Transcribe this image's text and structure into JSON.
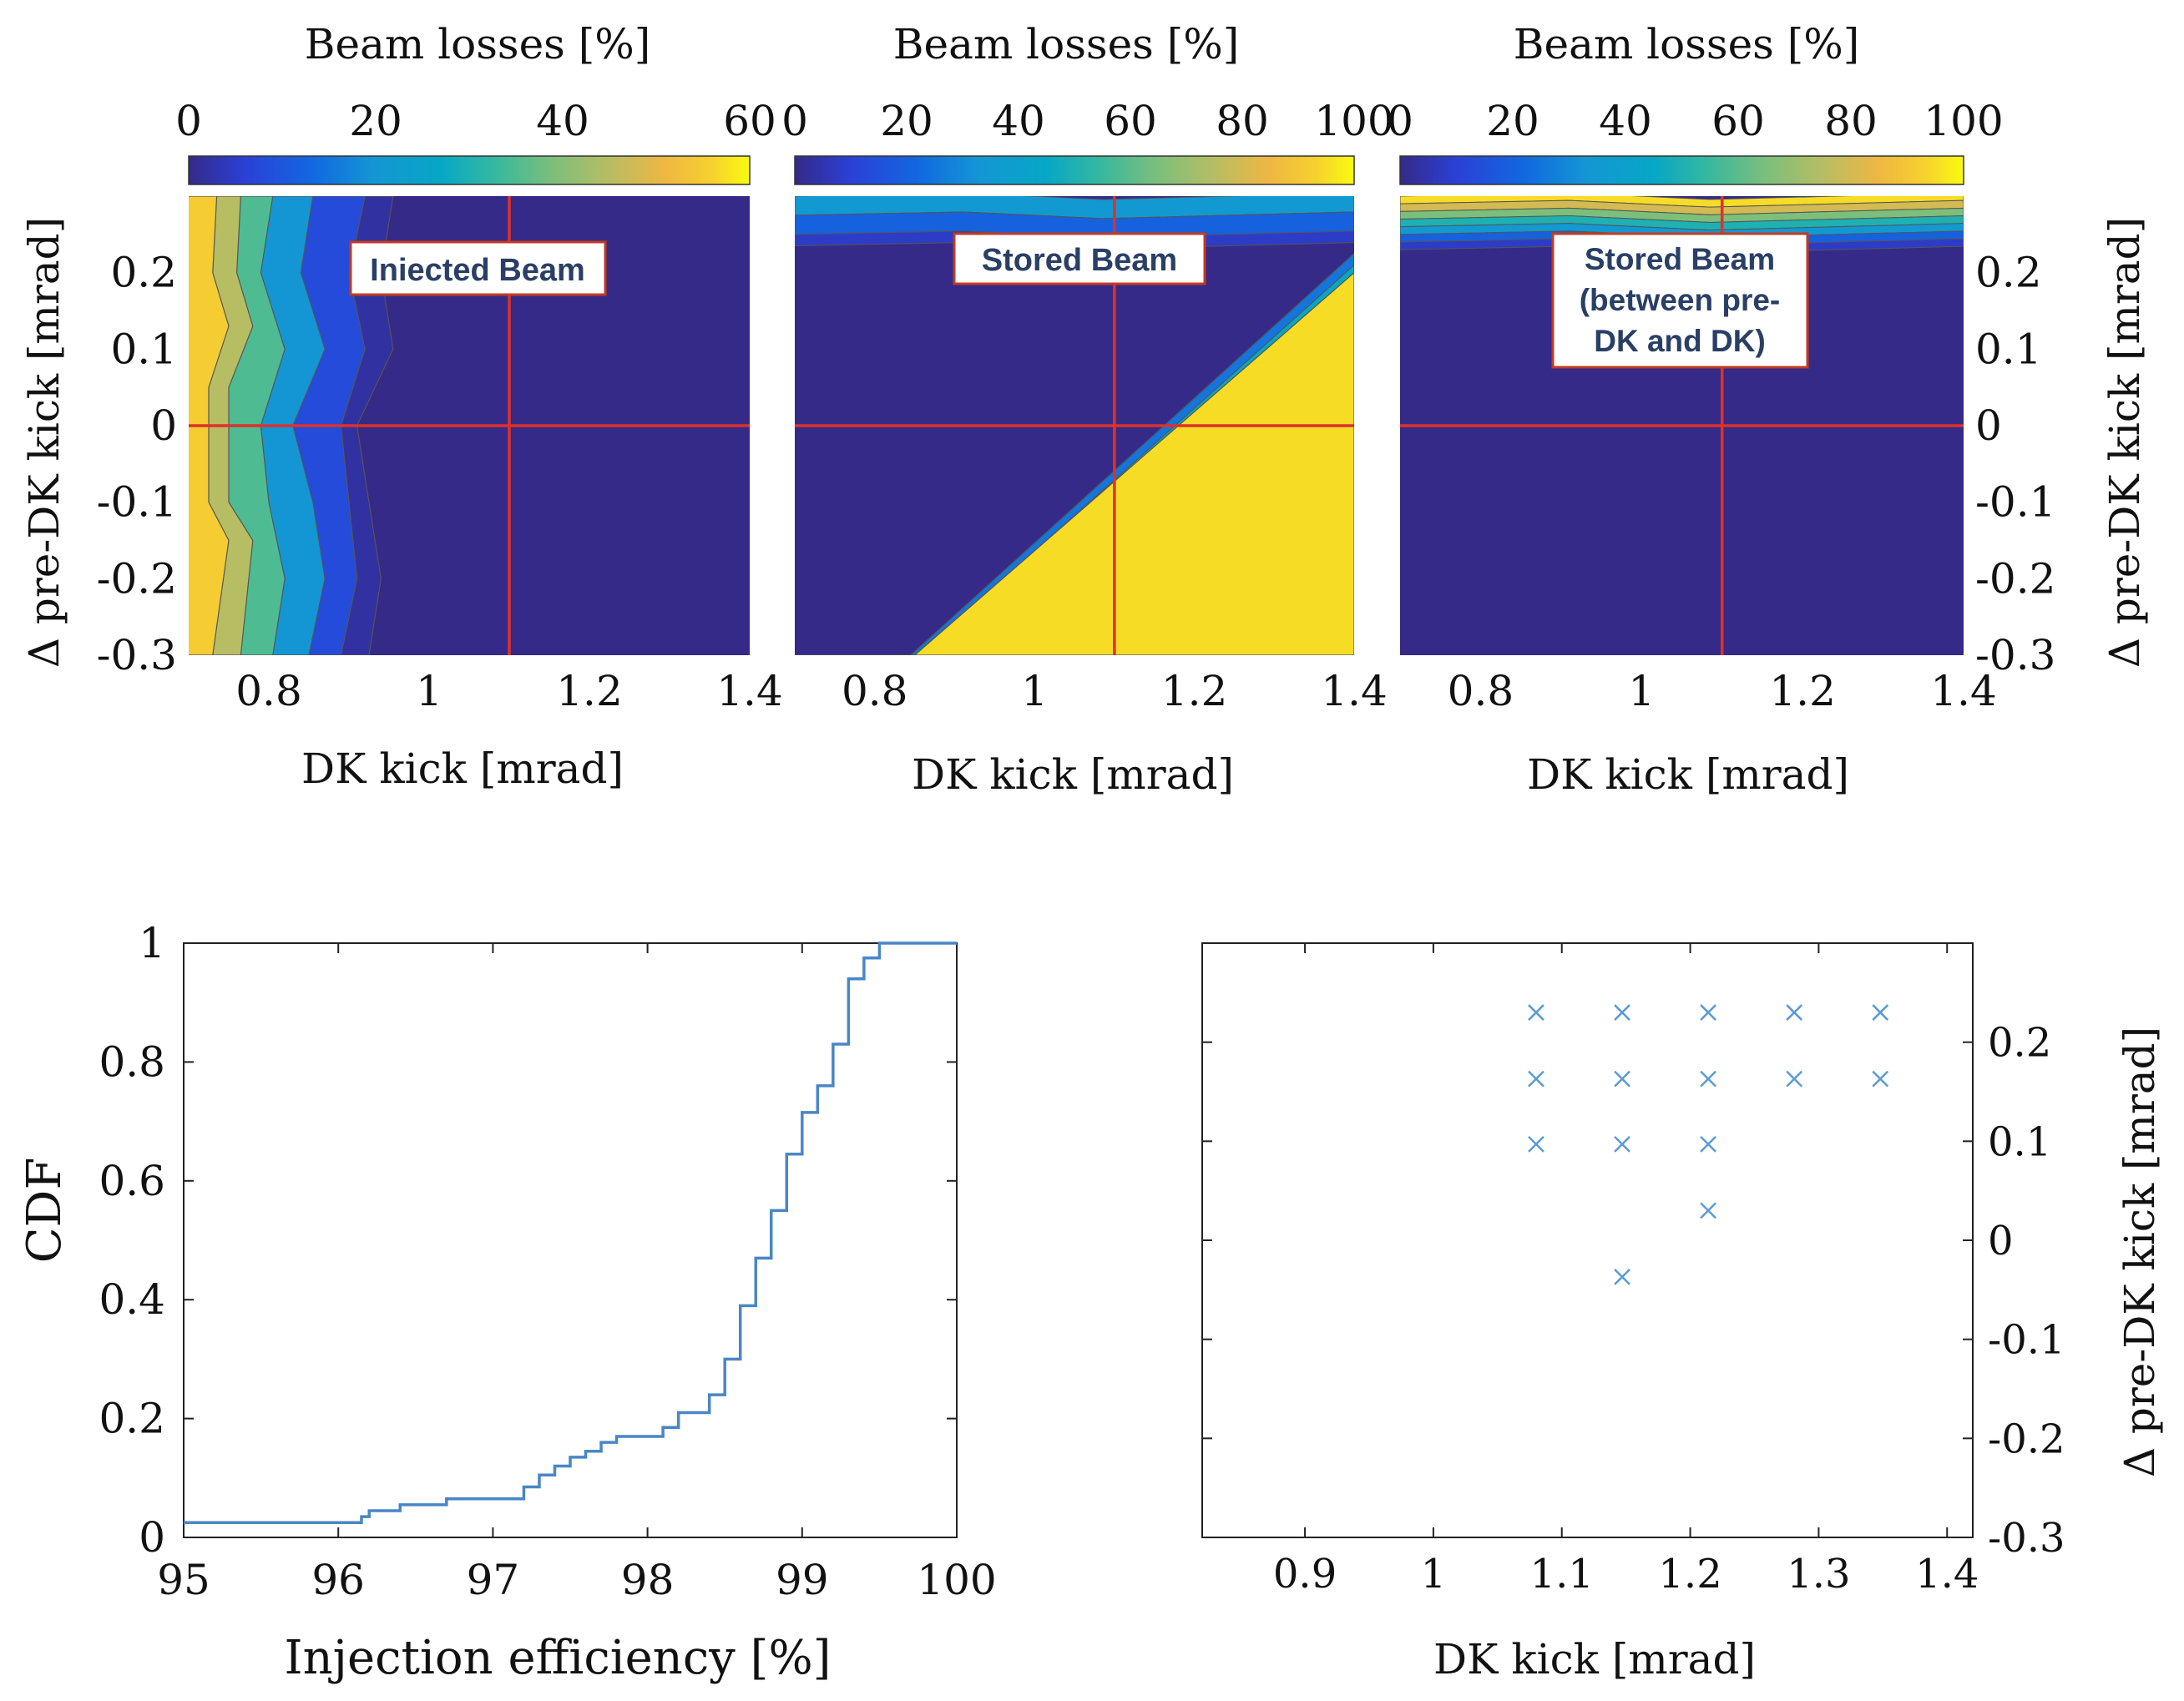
{
  "chart_data": [
    {
      "id": "panel-injected",
      "type": "heatmap",
      "colorbar": {
        "label": "Beam losses [%]",
        "range": [
          0,
          60
        ],
        "ticks": [
          0,
          20,
          40,
          60
        ]
      },
      "annotation": "Iniected Beam",
      "xlabel": "DK kick [mrad]",
      "ylabel": "Δ pre-DK kick [mrad]",
      "xlim": [
        0.7,
        1.4
      ],
      "ylim": [
        -0.3,
        0.3
      ],
      "xticks": [
        0.8,
        1,
        1.2,
        1.4
      ],
      "yticks": [
        -0.3,
        -0.2,
        -0.1,
        0,
        0.1,
        0.2
      ],
      "crosshair": {
        "x": 1.1,
        "y": 0
      },
      "contour_bands": [
        {
          "level": 55,
          "boundary": [
            [
              0.735,
              0.3
            ],
            [
              0.73,
              0.2
            ],
            [
              0.75,
              0.13
            ],
            [
              0.725,
              0.05
            ],
            [
              0.725,
              -0.1
            ],
            [
              0.75,
              -0.15
            ],
            [
              0.73,
              -0.3
            ]
          ]
        },
        {
          "level": 45,
          "boundary": [
            [
              0.765,
              0.3
            ],
            [
              0.76,
              0.2
            ],
            [
              0.78,
              0.13
            ],
            [
              0.75,
              0.05
            ],
            [
              0.75,
              -0.1
            ],
            [
              0.78,
              -0.15
            ],
            [
              0.765,
              -0.3
            ]
          ]
        },
        {
          "level": 35,
          "boundary": [
            [
              0.805,
              0.3
            ],
            [
              0.79,
              0.2
            ],
            [
              0.82,
              0.1
            ],
            [
              0.79,
              0.0
            ],
            [
              0.8,
              -0.1
            ],
            [
              0.82,
              -0.2
            ],
            [
              0.805,
              -0.3
            ]
          ]
        },
        {
          "level": 20,
          "boundary": [
            [
              0.855,
              0.3
            ],
            [
              0.84,
              0.2
            ],
            [
              0.87,
              0.1
            ],
            [
              0.83,
              0.0
            ],
            [
              0.855,
              -0.1
            ],
            [
              0.87,
              -0.2
            ],
            [
              0.85,
              -0.3
            ]
          ]
        },
        {
          "level": 8,
          "boundary": [
            [
              0.92,
              0.3
            ],
            [
              0.9,
              0.2
            ],
            [
              0.92,
              0.1
            ],
            [
              0.89,
              0.0
            ],
            [
              0.9,
              -0.1
            ],
            [
              0.91,
              -0.2
            ],
            [
              0.89,
              -0.3
            ]
          ]
        },
        {
          "level": 2,
          "boundary": [
            [
              0.955,
              0.3
            ],
            [
              0.94,
              0.2
            ],
            [
              0.955,
              0.1
            ],
            [
              0.91,
              0.0
            ],
            [
              0.925,
              -0.1
            ],
            [
              0.94,
              -0.2
            ],
            [
              0.925,
              -0.3
            ]
          ]
        }
      ]
    },
    {
      "id": "panel-stored",
      "type": "heatmap",
      "colorbar": {
        "label": "Beam losses [%]",
        "range": [
          0,
          100
        ],
        "ticks": [
          0,
          20,
          40,
          60,
          80,
          100
        ]
      },
      "annotation": "Stored Beam",
      "xlabel": "DK kick [mrad]",
      "xlim": [
        0.7,
        1.4
      ],
      "ylim": [
        -0.3,
        0.3
      ],
      "xticks": [
        0.8,
        1,
        1.2,
        1.4
      ],
      "crosshair": {
        "x": 1.1,
        "y": 0
      },
      "regions": [
        {
          "loss": 95,
          "polygon": [
            [
              0.7,
              -0.3
            ],
            [
              1.4,
              -0.3
            ],
            [
              1.4,
              0.2
            ],
            [
              0.85,
              -0.3
            ]
          ]
        },
        {
          "loss": 70,
          "polygon": [
            [
              0.89,
              -0.3
            ],
            [
              1.4,
              0.18
            ],
            [
              1.4,
              0.2
            ],
            [
              0.86,
              -0.3
            ]
          ]
        },
        {
          "loss": 45,
          "polygon": [
            [
              0.87,
              -0.3
            ],
            [
              1.4,
              0.19
            ],
            [
              1.4,
              0.21
            ],
            [
              0.855,
              -0.3
            ]
          ]
        },
        {
          "loss": 25,
          "polygon": [
            [
              0.86,
              -0.3
            ],
            [
              1.4,
              0.2
            ],
            [
              1.4,
              0.225
            ],
            [
              0.845,
              -0.3
            ]
          ]
        }
      ],
      "top_band": [
        {
          "loss": 35,
          "y_from": 0.275,
          "y_to": 0.3
        },
        {
          "loss": 20,
          "y_from": 0.25,
          "y_to": 0.275
        },
        {
          "loss": 8,
          "y_from": 0.235,
          "y_to": 0.25
        }
      ]
    },
    {
      "id": "panel-stored-between",
      "type": "heatmap",
      "colorbar": {
        "label": "Beam losses [%]",
        "range": [
          0,
          100
        ],
        "ticks": [
          0,
          20,
          40,
          60,
          80,
          100
        ]
      },
      "annotation": [
        "Stored Beam",
        "(between pre-",
        "DK and DK)"
      ],
      "xlabel": "DK kick [mrad]",
      "ylabel": "Δ pre-DK kick [mrad]",
      "xlim": [
        0.7,
        1.4
      ],
      "ylim": [
        -0.3,
        0.3
      ],
      "xticks": [
        0.8,
        1,
        1.2,
        1.4
      ],
      "yticks": [
        -0.3,
        -0.2,
        -0.1,
        0,
        0.1,
        0.2
      ],
      "crosshair": {
        "x": 1.1,
        "y": 0
      },
      "top_band": [
        {
          "loss": 95,
          "y_from": 0.29,
          "y_to": 0.3
        },
        {
          "loss": 80,
          "y_from": 0.28,
          "y_to": 0.29
        },
        {
          "loss": 65,
          "y_from": 0.27,
          "y_to": 0.28
        },
        {
          "loss": 50,
          "y_from": 0.26,
          "y_to": 0.27
        },
        {
          "loss": 35,
          "y_from": 0.25,
          "y_to": 0.26
        },
        {
          "loss": 20,
          "y_from": 0.24,
          "y_to": 0.25
        },
        {
          "loss": 8,
          "y_from": 0.23,
          "y_to": 0.24
        }
      ]
    },
    {
      "id": "panel-cdf",
      "type": "line",
      "xlabel": "Injection efficiency [%]",
      "ylabel": "CDF",
      "xlim": [
        95,
        100
      ],
      "ylim": [
        0,
        1
      ],
      "xticks": [
        95,
        96,
        97,
        98,
        99,
        100
      ],
      "yticks": [
        0,
        0.2,
        0.4,
        0.6,
        0.8,
        1
      ],
      "step": true,
      "x": [
        95.0,
        96.15,
        96.2,
        96.4,
        96.7,
        97.2,
        97.3,
        97.4,
        97.5,
        97.6,
        97.7,
        97.8,
        97.9,
        98.1,
        98.2,
        98.4,
        98.5,
        98.6,
        98.7,
        98.8,
        98.9,
        99.0,
        99.1,
        99.2,
        99.3,
        99.4,
        99.5,
        100.0
      ],
      "y": [
        0.025,
        0.035,
        0.045,
        0.055,
        0.065,
        0.085,
        0.105,
        0.12,
        0.135,
        0.145,
        0.16,
        0.17,
        0.17,
        0.185,
        0.21,
        0.24,
        0.3,
        0.39,
        0.47,
        0.55,
        0.645,
        0.715,
        0.76,
        0.83,
        0.94,
        0.975,
        1.0,
        1.0
      ]
    },
    {
      "id": "panel-scatter",
      "type": "scatter",
      "xlabel": "DK kick [mrad]",
      "ylabel": "Δ pre-DK kick [mrad]",
      "xlim": [
        0.82,
        1.42
      ],
      "ylim": [
        -0.3,
        0.3
      ],
      "xticks": [
        0.9,
        1,
        1.1,
        1.2,
        1.3,
        1.4
      ],
      "yticks": [
        -0.3,
        -0.2,
        -0.1,
        0,
        0.1,
        0.2
      ],
      "marker": "x",
      "color": "#5b9bd5",
      "points": [
        [
          1.08,
          0.23
        ],
        [
          1.147,
          0.23
        ],
        [
          1.214,
          0.23
        ],
        [
          1.281,
          0.23
        ],
        [
          1.348,
          0.23
        ],
        [
          1.08,
          0.163
        ],
        [
          1.147,
          0.163
        ],
        [
          1.214,
          0.163
        ],
        [
          1.281,
          0.163
        ],
        [
          1.348,
          0.163
        ],
        [
          1.08,
          0.097
        ],
        [
          1.147,
          0.097
        ],
        [
          1.214,
          0.097
        ],
        [
          1.214,
          0.03
        ],
        [
          1.147,
          -0.037
        ]
      ]
    }
  ],
  "colors": {
    "crosshair": "#e0302a",
    "cdf_line": "#4a86c5",
    "annotation_border": "#c23b22",
    "annotation_text": "#2a3f66"
  }
}
